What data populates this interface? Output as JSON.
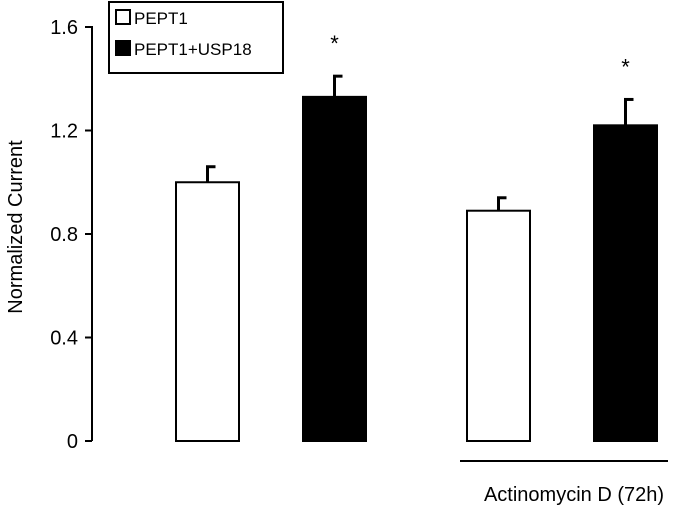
{
  "chart_data": {
    "type": "bar",
    "title": "",
    "xlabel": "",
    "ylabel": "Normalized Current",
    "ylim": [
      0,
      1.6
    ],
    "yticks": [
      0,
      0.4,
      0.8,
      1.2,
      1.6
    ],
    "ytick_labels": [
      "0",
      "0.4",
      "0.8",
      "1.2",
      "1.6"
    ],
    "grid": false,
    "legend_position": "top-left",
    "groups": [
      {
        "label": "",
        "significance": [
          "",
          "*"
        ]
      },
      {
        "label": "Actinomycin D (72h)",
        "significance": [
          "",
          "*"
        ]
      }
    ],
    "series": [
      {
        "name": "PEPT1",
        "color": "#ffffff",
        "values": [
          1.0,
          0.89
        ],
        "errors": [
          0.06,
          0.05
        ]
      },
      {
        "name": "PEPT1+USP18",
        "color": "#000000",
        "values": [
          1.33,
          1.22
        ],
        "errors": [
          0.08,
          0.1
        ]
      }
    ]
  }
}
